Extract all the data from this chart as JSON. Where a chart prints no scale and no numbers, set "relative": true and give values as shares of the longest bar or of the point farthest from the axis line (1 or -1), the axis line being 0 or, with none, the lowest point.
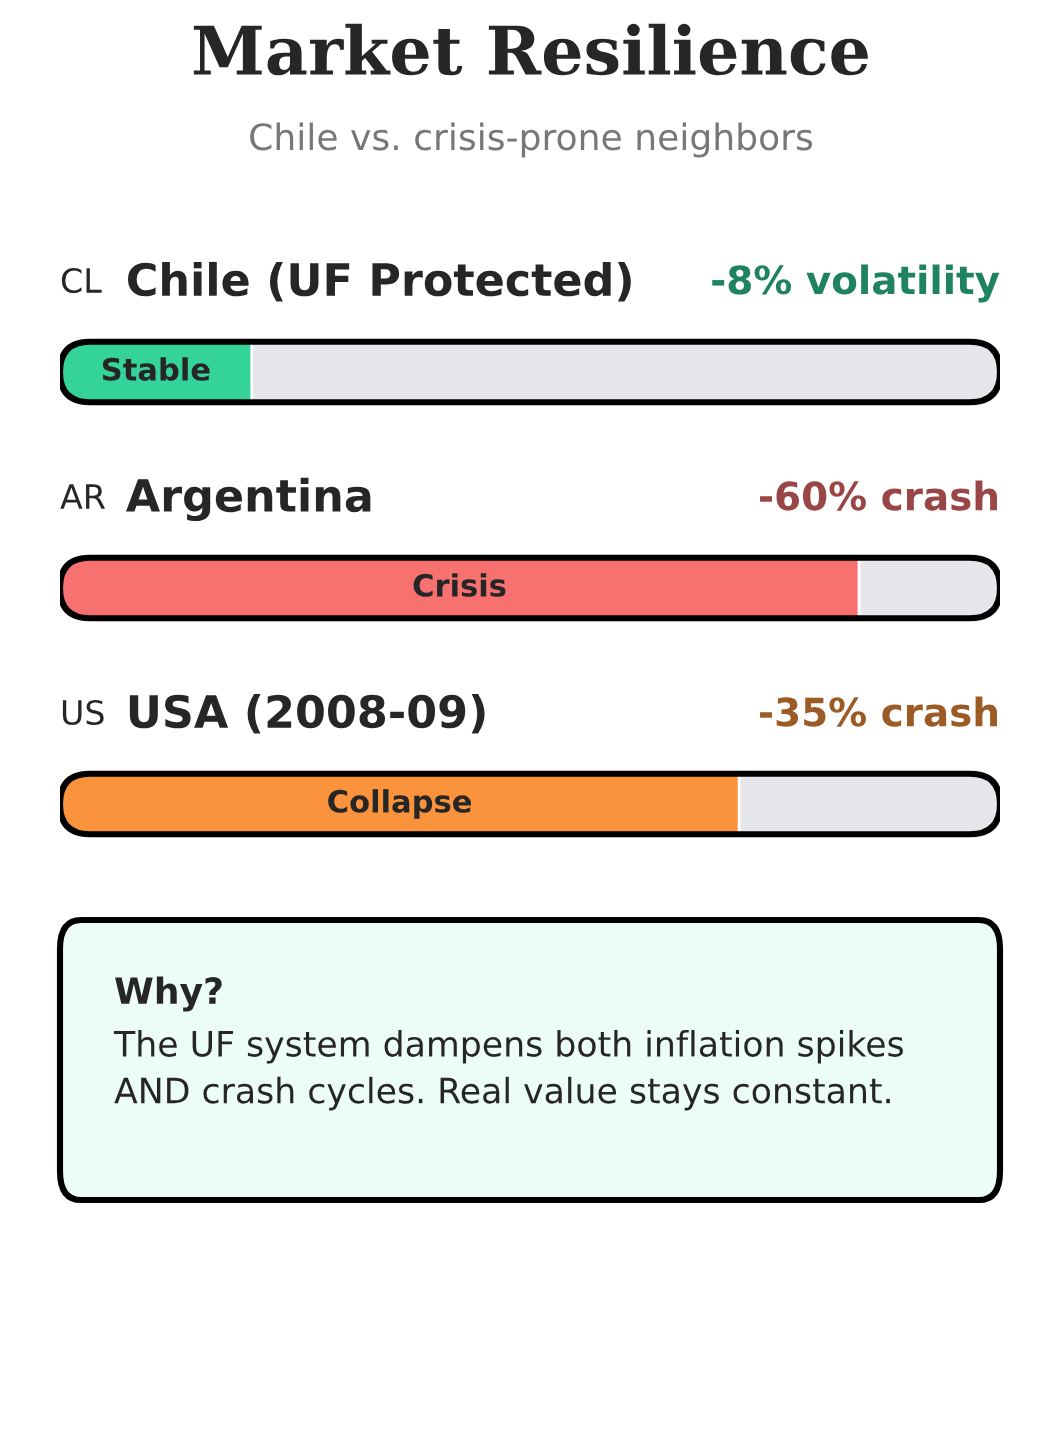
{
  "chart_data": {
    "type": "bar",
    "orientation": "horizontal",
    "relative": true,
    "title": "Market Resilience",
    "subtitle": "Chile vs. crisis-prone neighbors",
    "categories": [
      "Chile (UF Protected)",
      "Argentina",
      "USA (2008-09)"
    ],
    "values": [
      0.24,
      1,
      0.85
    ],
    "colors": [
      "#34d399",
      "#f87171",
      "#fb923c"
    ],
    "annotations": [
      "CL",
      "AR",
      "US",
      "-8% volatility",
      "-60% crash",
      "-35% crash",
      "Stable",
      "Crisis",
      "Collapse",
      "Why?",
      "The UF system dampens both inflation spikes AND crash cycles. Real value stays constant."
    ]
  }
}
